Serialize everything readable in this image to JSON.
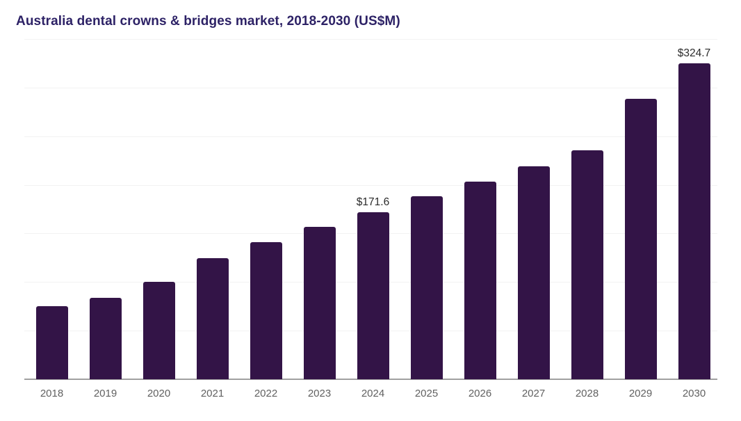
{
  "chart": {
    "title": "Australia dental crowns & bridges market, 2018-2030 (US$M)",
    "colors": {
      "title": "#2d2266",
      "bar": "#331447",
      "tick_label": "#616161",
      "data_label": "#2b2b2b",
      "gridline": "#f2f2f2",
      "axis_line": "#a0a0a0",
      "background": "#ffffff"
    }
  },
  "chart_data": {
    "type": "bar",
    "title": "Australia dental crowns & bridges market, 2018-2030 (US$M)",
    "categories": [
      "2018",
      "2019",
      "2020",
      "2021",
      "2022",
      "2023",
      "2024",
      "2025",
      "2026",
      "2027",
      "2028",
      "2029",
      "2030"
    ],
    "values": [
      75.5,
      83.5,
      100.5,
      124.5,
      141.0,
      156.5,
      171.6,
      188.0,
      203.5,
      219.0,
      235.5,
      288.5,
      324.7
    ],
    "data_labels": {
      "2024": "$171.6",
      "2030": "$324.7"
    },
    "xlabel": "",
    "ylabel": "",
    "ylim": [
      0,
      350
    ],
    "gridline_step": 50,
    "grid": "horizontal-only",
    "legend": "none",
    "note": "values for years without data labels are estimated from gridlines (50 US$M spacing)"
  }
}
